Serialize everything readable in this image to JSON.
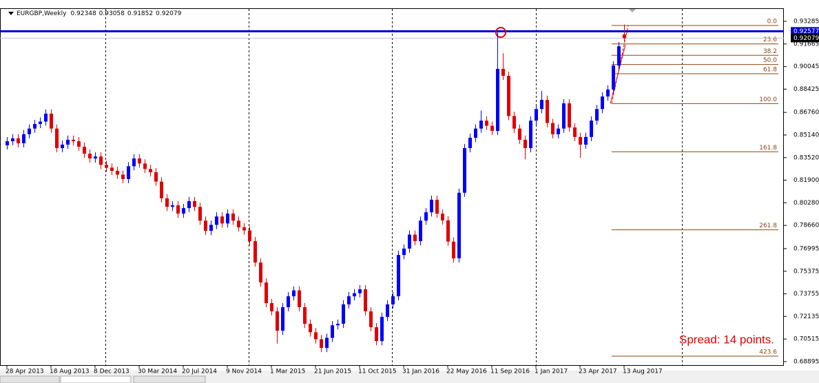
{
  "chart_data": {
    "type": "candlestick",
    "symbol": "EURGBP,Weekly",
    "categories": [
      "28 Apr 2013",
      null,
      null,
      null,
      null,
      null,
      null,
      null,
      "18 Aug 2013",
      null,
      null,
      null,
      null,
      null,
      null,
      null,
      "8 Dec 2013",
      null,
      null,
      null,
      null,
      null,
      null,
      null,
      "30 Mar 2014",
      null,
      null,
      null,
      null,
      null,
      null,
      null,
      "20 Jul 2014",
      null,
      null,
      null,
      null,
      null,
      null,
      null,
      "9 Nov 2014",
      null,
      null,
      null,
      null,
      null,
      null,
      null,
      "1 Mar 2015",
      null,
      null,
      null,
      null,
      null,
      null,
      null,
      "21 Jun 2015",
      null,
      null,
      null,
      null,
      null,
      null,
      null,
      "11 Oct 2015",
      null,
      null,
      null,
      null,
      null,
      null,
      null,
      "31 Jan 2016",
      null,
      null,
      null,
      null,
      null,
      null,
      null,
      "22 May 2016",
      null,
      null,
      null,
      null,
      null,
      null,
      null,
      "11 Sep 2016",
      null,
      null,
      null,
      null,
      null,
      null,
      null,
      "1 Jan 2017",
      null,
      null,
      null,
      null,
      null,
      null,
      null,
      "23 Apr 2017",
      null,
      null,
      null,
      null,
      null,
      null,
      null,
      "13 Aug 2017"
    ],
    "open": [
      0.844,
      0.8469,
      0.849,
      0.8455,
      0.852,
      0.856,
      0.8593,
      0.861,
      0.8667,
      0.856,
      0.842,
      0.8445,
      0.848,
      0.8469,
      0.843,
      0.838,
      0.8346,
      0.836,
      0.83,
      0.828,
      0.8257,
      0.823,
      0.8198,
      0.829,
      0.8346,
      0.831,
      0.827,
      0.8247,
      0.818,
      0.806,
      0.7999,
      0.801,
      0.7951,
      0.799,
      0.804,
      0.7999,
      0.79,
      0.7827,
      0.787,
      0.793,
      0.788,
      0.7951,
      0.79,
      0.7852,
      0.783,
      0.7753,
      0.76,
      0.7457,
      0.7309,
      0.725,
      0.7111,
      0.728,
      0.7358,
      0.74,
      0.728,
      0.7161,
      0.71,
      0.705,
      0.6988,
      0.706,
      0.715,
      0.7161,
      0.73,
      0.7358,
      0.738,
      0.7408,
      0.725,
      0.7136,
      0.7037,
      0.721,
      0.73,
      0.7358,
      0.7654,
      0.77,
      0.78,
      0.7753,
      0.79,
      0.796,
      0.805,
      0.795,
      0.7902,
      0.775,
      0.763,
      0.81,
      0.842,
      0.8494,
      0.856,
      0.8617,
      0.858,
      0.8543,
      0.8988,
      0.8938,
      0.865,
      0.856,
      0.848,
      0.842,
      0.8617,
      0.87,
      0.8766,
      0.86,
      0.8519,
      0.856,
      0.8741,
      0.8568,
      0.85,
      0.8445,
      0.85,
      0.8617,
      0.87,
      0.879,
      0.884,
      0.9012,
      0.92348
    ],
    "high": [
      0.8499,
      0.852,
      0.852,
      0.855,
      0.859,
      0.8623,
      0.864,
      0.8697,
      0.8697,
      0.859,
      0.8475,
      0.851,
      0.851,
      0.8499,
      0.846,
      0.841,
      0.839,
      0.839,
      0.833,
      0.831,
      0.8287,
      0.826,
      0.832,
      0.8376,
      0.8376,
      0.834,
      0.83,
      0.8277,
      0.821,
      0.809,
      0.804,
      0.804,
      0.802,
      0.807,
      0.807,
      0.8029,
      0.793,
      0.79,
      0.796,
      0.796,
      0.7981,
      0.7981,
      0.793,
      0.7882,
      0.786,
      0.7783,
      0.763,
      0.7487,
      0.7339,
      0.728,
      0.731,
      0.7388,
      0.743,
      0.743,
      0.731,
      0.7191,
      0.713,
      0.708,
      0.709,
      0.718,
      0.7191,
      0.733,
      0.7388,
      0.741,
      0.7438,
      0.7438,
      0.728,
      0.7166,
      0.724,
      0.733,
      0.7388,
      0.7684,
      0.773,
      0.783,
      0.783,
      0.793,
      0.799,
      0.808,
      0.808,
      0.798,
      0.7932,
      0.778,
      0.813,
      0.845,
      0.8524,
      0.859,
      0.869,
      0.8647,
      0.861,
      0.925,
      0.91,
      0.8968,
      0.868,
      0.859,
      0.851,
      0.8647,
      0.873,
      0.883,
      0.8796,
      0.863,
      0.859,
      0.8771,
      0.8771,
      0.8598,
      0.853,
      0.853,
      0.8647,
      0.873,
      0.882,
      0.887,
      0.9042,
      0.918,
      0.93058
    ],
    "low": [
      0.841,
      0.8439,
      0.8425,
      0.8425,
      0.849,
      0.853,
      0.8563,
      0.858,
      0.853,
      0.839,
      0.839,
      0.8415,
      0.8439,
      0.84,
      0.835,
      0.8316,
      0.8316,
      0.827,
      0.825,
      0.8227,
      0.82,
      0.8168,
      0.8168,
      0.826,
      0.828,
      0.824,
      0.8217,
      0.815,
      0.803,
      0.7969,
      0.7969,
      0.7921,
      0.7921,
      0.796,
      0.7969,
      0.787,
      0.7797,
      0.7797,
      0.784,
      0.785,
      0.785,
      0.787,
      0.7822,
      0.78,
      0.7723,
      0.757,
      0.7427,
      0.7279,
      0.722,
      0.702,
      0.7081,
      0.725,
      0.7328,
      0.725,
      0.7131,
      0.707,
      0.702,
      0.6958,
      0.6958,
      0.703,
      0.712,
      0.7131,
      0.727,
      0.7328,
      0.735,
      0.722,
      0.7106,
      0.7007,
      0.7007,
      0.718,
      0.727,
      0.7328,
      0.7624,
      0.767,
      0.7723,
      0.7723,
      0.787,
      0.793,
      0.792,
      0.7872,
      0.772,
      0.76,
      0.76,
      0.807,
      0.839,
      0.8464,
      0.853,
      0.855,
      0.8513,
      0.8513,
      0.8908,
      0.862,
      0.853,
      0.845,
      0.834,
      0.839,
      0.8587,
      0.867,
      0.857,
      0.8489,
      0.8489,
      0.853,
      0.8538,
      0.847,
      0.835,
      0.8415,
      0.847,
      0.8587,
      0.867,
      0.876,
      0.881,
      0.8982,
      0.91852
    ],
    "close": [
      0.8469,
      0.849,
      0.8455,
      0.852,
      0.856,
      0.8593,
      0.861,
      0.8667,
      0.856,
      0.842,
      0.8445,
      0.848,
      0.8469,
      0.843,
      0.838,
      0.8346,
      0.836,
      0.83,
      0.828,
      0.8257,
      0.823,
      0.8198,
      0.829,
      0.8346,
      0.831,
      0.827,
      0.8247,
      0.818,
      0.806,
      0.7999,
      0.801,
      0.7951,
      0.799,
      0.804,
      0.7999,
      0.79,
      0.7827,
      0.787,
      0.793,
      0.788,
      0.7951,
      0.79,
      0.7852,
      0.783,
      0.7753,
      0.76,
      0.7457,
      0.7309,
      0.725,
      0.7111,
      0.728,
      0.7358,
      0.74,
      0.728,
      0.7161,
      0.71,
      0.705,
      0.6988,
      0.706,
      0.715,
      0.7161,
      0.73,
      0.7358,
      0.738,
      0.7408,
      0.725,
      0.7136,
      0.7037,
      0.721,
      0.73,
      0.7358,
      0.7654,
      0.77,
      0.78,
      0.7753,
      0.79,
      0.796,
      0.805,
      0.795,
      0.7902,
      0.775,
      0.763,
      0.81,
      0.842,
      0.8494,
      0.856,
      0.8617,
      0.858,
      0.8543,
      0.8988,
      0.8938,
      0.865,
      0.856,
      0.848,
      0.842,
      0.8617,
      0.87,
      0.8766,
      0.86,
      0.8519,
      0.856,
      0.8741,
      0.8568,
      0.85,
      0.8445,
      0.85,
      0.8617,
      0.87,
      0.879,
      0.884,
      0.9012,
      0.915,
      0.92079
    ],
    "up_color": "#0000ff",
    "down_color": "#e00000",
    "ylim": [
      0.68648,
      0.94223
    ],
    "yticks": [
      0.93285,
      0.91665,
      0.90045,
      0.88425,
      {
        "value": 0.8676,
        "label": "0.86760"
      },
      {
        "value": 0.8514,
        "label": "0.85140"
      },
      {
        "value": 0.8352,
        "label": "0.83520"
      },
      {
        "value": 0.819,
        "label": "0.81900"
      },
      {
        "value": 0.8028,
        "label": "0.80280"
      },
      {
        "value": 0.7866,
        "label": "0.78660"
      },
      0.76995,
      0.75375,
      0.73755,
      0.72135,
      0.70515,
      0.68895
    ],
    "hline": {
      "value": 0.92577,
      "color": "#0000cd"
    },
    "fibonacci": {
      "anchor_prices": [
        0.92989,
        0.87394
      ],
      "color": "#8b4513",
      "levels": [
        {
          "value": 0,
          "label": "0.0"
        },
        23.6,
        38.2,
        {
          "value": 50,
          "label": "50.0"
        },
        61.8,
        {
          "value": 100,
          "label": "100.0"
        },
        161.8,
        261.8,
        423.6
      ]
    },
    "annotation": "Spread: 14 points."
  }
}
